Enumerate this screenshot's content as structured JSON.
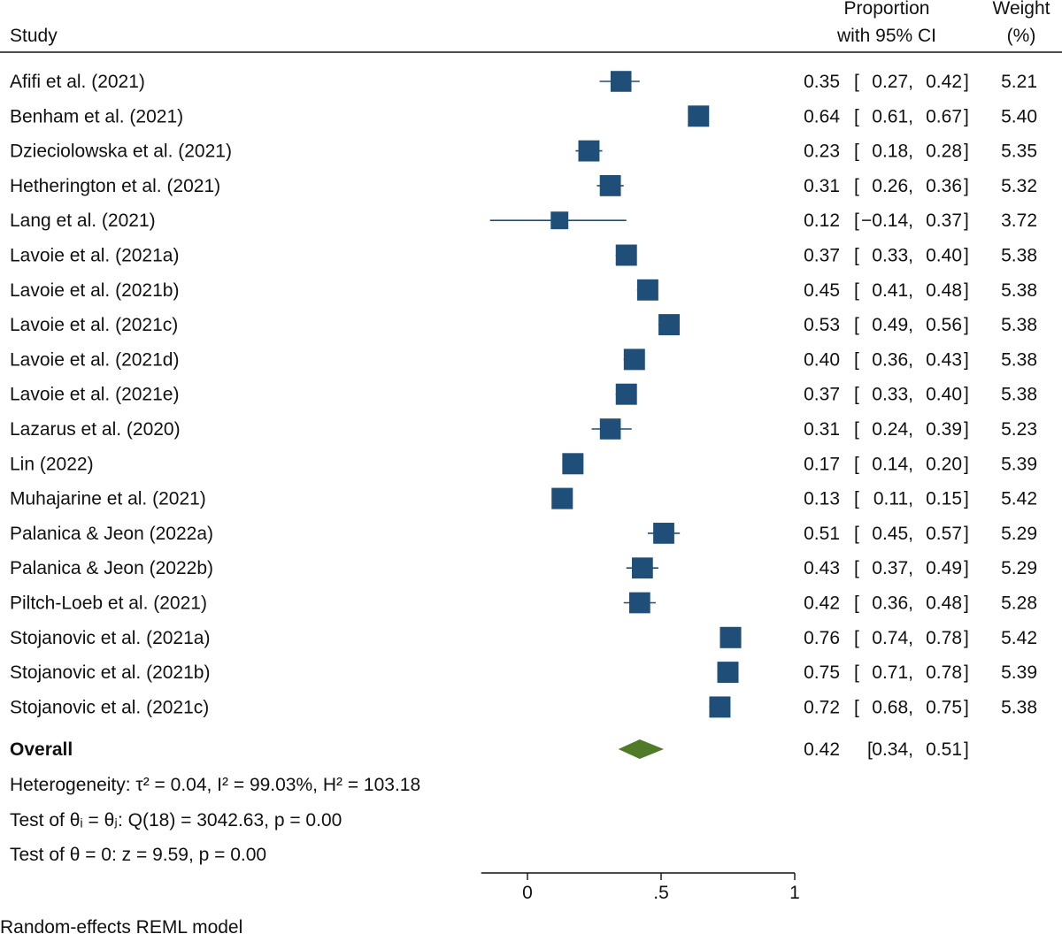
{
  "header": {
    "study_label": "Study",
    "prop_label_line1": "Proportion",
    "prop_label_line2": "with 95% CI",
    "weight_label_line1": "Weight",
    "weight_label_line2": "(%)"
  },
  "colors": {
    "marker": "#1f4e79",
    "diamond": "#4f7a28",
    "text": "#111111"
  },
  "chart_data": {
    "type": "forest",
    "axis": {
      "xlim": [
        -0.14,
        1
      ],
      "ticks": [
        0,
        0.5,
        1
      ],
      "tick_labels": [
        "0",
        ".5",
        "1"
      ]
    },
    "studies": [
      {
        "name": "Afifi et al. (2021)",
        "est": 0.35,
        "lo": 0.27,
        "hi": 0.42,
        "est_label": "0.35",
        "lo_label": "0.27",
        "hi_label": "0.42",
        "weight": "5.21"
      },
      {
        "name": "Benham et al. (2021)",
        "est": 0.64,
        "lo": 0.61,
        "hi": 0.67,
        "est_label": "0.64",
        "lo_label": "0.61",
        "hi_label": "0.67",
        "weight": "5.40"
      },
      {
        "name": "Dzieciolowska et al. (2021)",
        "est": 0.23,
        "lo": 0.18,
        "hi": 0.28,
        "est_label": "0.23",
        "lo_label": "0.18",
        "hi_label": "0.28",
        "weight": "5.35"
      },
      {
        "name": "Hetherington et al. (2021)",
        "est": 0.31,
        "lo": 0.26,
        "hi": 0.36,
        "est_label": "0.31",
        "lo_label": "0.26",
        "hi_label": "0.36",
        "weight": "5.32"
      },
      {
        "name": "Lang et al. (2021)",
        "est": 0.12,
        "lo": -0.14,
        "hi": 0.37,
        "est_label": "0.12",
        "lo_label": "−0.14",
        "hi_label": "0.37",
        "weight": "3.72"
      },
      {
        "name": "Lavoie et al. (2021a)",
        "est": 0.37,
        "lo": 0.33,
        "hi": 0.4,
        "est_label": "0.37",
        "lo_label": "0.33",
        "hi_label": "0.40",
        "weight": "5.38"
      },
      {
        "name": "Lavoie et al. (2021b)",
        "est": 0.45,
        "lo": 0.41,
        "hi": 0.48,
        "est_label": "0.45",
        "lo_label": "0.41",
        "hi_label": "0.48",
        "weight": "5.38"
      },
      {
        "name": "Lavoie et al. (2021c)",
        "est": 0.53,
        "lo": 0.49,
        "hi": 0.56,
        "est_label": "0.53",
        "lo_label": "0.49",
        "hi_label": "0.56",
        "weight": "5.38"
      },
      {
        "name": "Lavoie et al. (2021d)",
        "est": 0.4,
        "lo": 0.36,
        "hi": 0.43,
        "est_label": "0.40",
        "lo_label": "0.36",
        "hi_label": "0.43",
        "weight": "5.38"
      },
      {
        "name": "Lavoie et al. (2021e)",
        "est": 0.37,
        "lo": 0.33,
        "hi": 0.4,
        "est_label": "0.37",
        "lo_label": "0.33",
        "hi_label": "0.40",
        "weight": "5.38"
      },
      {
        "name": "Lazarus et al. (2020)",
        "est": 0.31,
        "lo": 0.24,
        "hi": 0.39,
        "est_label": "0.31",
        "lo_label": "0.24",
        "hi_label": "0.39",
        "weight": "5.23"
      },
      {
        "name": "Lin (2022)",
        "est": 0.17,
        "lo": 0.14,
        "hi": 0.2,
        "est_label": "0.17",
        "lo_label": "0.14",
        "hi_label": "0.20",
        "weight": "5.39"
      },
      {
        "name": "Muhajarine et al. (2021)",
        "est": 0.13,
        "lo": 0.11,
        "hi": 0.15,
        "est_label": "0.13",
        "lo_label": "0.11",
        "hi_label": "0.15",
        "weight": "5.42"
      },
      {
        "name": "Palanica & Jeon (2022a)",
        "est": 0.51,
        "lo": 0.45,
        "hi": 0.57,
        "est_label": "0.51",
        "lo_label": "0.45",
        "hi_label": "0.57",
        "weight": "5.29"
      },
      {
        "name": "Palanica & Jeon (2022b)",
        "est": 0.43,
        "lo": 0.37,
        "hi": 0.49,
        "est_label": "0.43",
        "lo_label": "0.37",
        "hi_label": "0.49",
        "weight": "5.29"
      },
      {
        "name": "Piltch-Loeb et al. (2021)",
        "est": 0.42,
        "lo": 0.36,
        "hi": 0.48,
        "est_label": "0.42",
        "lo_label": "0.36",
        "hi_label": "0.48",
        "weight": "5.28"
      },
      {
        "name": "Stojanovic et al. (2021a)",
        "est": 0.76,
        "lo": 0.74,
        "hi": 0.78,
        "est_label": "0.76",
        "lo_label": "0.74",
        "hi_label": "0.78",
        "weight": "5.42"
      },
      {
        "name": "Stojanovic et al. (2021b)",
        "est": 0.75,
        "lo": 0.71,
        "hi": 0.78,
        "est_label": "0.75",
        "lo_label": "0.71",
        "hi_label": "0.78",
        "weight": "5.39"
      },
      {
        "name": "Stojanovic et al. (2021c)",
        "est": 0.72,
        "lo": 0.68,
        "hi": 0.75,
        "est_label": "0.72",
        "lo_label": "0.68",
        "hi_label": "0.75",
        "weight": "5.38"
      }
    ],
    "overall": {
      "name": "Overall",
      "est": 0.42,
      "lo": 0.34,
      "hi": 0.51,
      "est_label": "0.42",
      "lo_label": "0.34",
      "hi_label": "0.51"
    },
    "stats": {
      "heterogeneity": "Heterogeneity: τ² = 0.04, I² = 99.03%, H² = 103.18",
      "test_q": "Test of θᵢ = θⱼ: Q(18) = 3042.63, p = 0.00",
      "test_z": "Test of θ = 0: z = 9.59, p = 0.00"
    },
    "model_note": "Random-effects REML model"
  }
}
